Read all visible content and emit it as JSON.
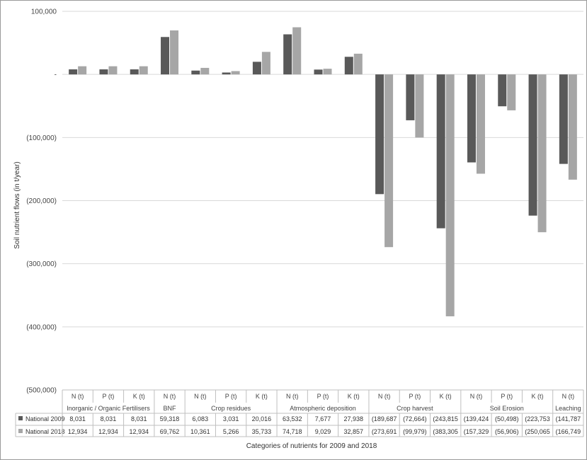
{
  "chart_data": {
    "type": "bar",
    "ylabel": "Soil nutrient flows (in t/year)",
    "xlabel": "Categories of nutrients for 2009 and 2018",
    "ylim": [
      -500000,
      100000
    ],
    "y_ticks": [
      100000,
      0,
      -100000,
      -200000,
      -300000,
      -400000,
      -500000
    ],
    "y_tick_labels": [
      "100,000",
      "-",
      "(100,000)",
      "(200,000)",
      "(300,000)",
      "(400,000)",
      "(500,000)"
    ],
    "grid": true,
    "legend": "in data table (left column)",
    "categories": [
      "N (t)",
      "P (t)",
      "K (t)",
      "N (t)",
      "N (t)",
      "P (t)",
      "K (t)",
      "N (t)",
      "P (t)",
      "K (t)",
      "N (t)",
      "P (t)",
      "K (t)",
      "N (t)",
      "P (t)",
      "K (t)",
      "N (t)"
    ],
    "groups": [
      {
        "label": "Inorganic / Organic Fertilisers",
        "span": 3
      },
      {
        "label": "BNF",
        "span": 1
      },
      {
        "label": "Crop residues",
        "span": 3
      },
      {
        "label": "Atmospheric deposition",
        "span": 3
      },
      {
        "label": "Crop harvest",
        "span": 3
      },
      {
        "label": "Soil Erosion",
        "span": 3
      },
      {
        "label": "Leaching",
        "span": 1
      }
    ],
    "series": [
      {
        "name": "National 2009",
        "color": "#595959",
        "values": [
          8031,
          8031,
          8031,
          59318,
          6083,
          3031,
          20016,
          63532,
          7677,
          27938,
          -189687,
          -72664,
          -243815,
          -139424,
          -50498,
          -223753,
          -141787
        ],
        "labels": [
          "8,031",
          "8,031",
          "8,031",
          "59,318",
          "6,083",
          "3,031",
          "20,016",
          "63,532",
          "7,677",
          "27,938",
          "(189,687",
          "(72,664)",
          "(243,815",
          "(139,424",
          "(50,498)",
          "(223,753",
          "(141,787"
        ]
      },
      {
        "name": "National 2018",
        "color": "#a6a6a6",
        "values": [
          12934,
          12934,
          12934,
          69762,
          10361,
          5266,
          35733,
          74718,
          9029,
          32857,
          -273691,
          -99979,
          -383305,
          -157329,
          -56906,
          -250065,
          -166749
        ],
        "labels": [
          "12,934",
          "12,934",
          "12,934",
          "69,762",
          "10,361",
          "5,266",
          "35,733",
          "74,718",
          "9,029",
          "32,857",
          "(273,691",
          "(99,979)",
          "(383,305",
          "(157,329",
          "(56,906)",
          "(250,065",
          "(166,749"
        ]
      }
    ]
  }
}
